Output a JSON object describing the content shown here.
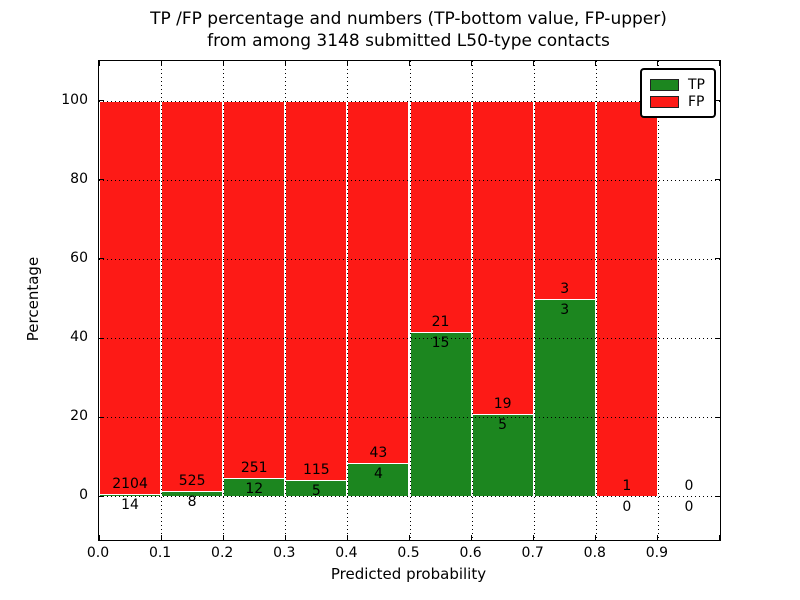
{
  "figure": {
    "title_line1": "TP /FP percentage and numbers (TP-bottom value, FP-upper)",
    "title_line2": "from among 3148 submitted L50-type contacts"
  },
  "chart_data": {
    "type": "bar",
    "stacked": true,
    "normalized": "each bin scaled to 100% of bin total",
    "title": "TP /FP percentage and numbers (TP-bottom value, FP-upper) from among 3148 submitted L50-type contacts",
    "total_contacts": 3148,
    "xlabel": "Predicted probability",
    "ylabel": "Percentage",
    "bin_edges": [
      0.0,
      0.1,
      0.2,
      0.3,
      0.4,
      0.5,
      0.6,
      0.7,
      0.8,
      0.9,
      1.0
    ],
    "xtick_labels": [
      "0.0",
      "0.1",
      "0.2",
      "0.3",
      "0.4",
      "0.5",
      "0.6",
      "0.7",
      "0.8",
      "0.9"
    ],
    "yticks": [
      0,
      20,
      40,
      60,
      80,
      100
    ],
    "xlim": [
      0.0,
      1.0
    ],
    "ylim": [
      -11,
      110
    ],
    "grid": "dotted black, drawn over bars",
    "series": [
      {
        "name": "TP",
        "color": "#1c861f",
        "counts": [
          14,
          8,
          12,
          5,
          4,
          15,
          5,
          3,
          0,
          0
        ]
      },
      {
        "name": "FP",
        "color": "#fd1a16",
        "counts": [
          2104,
          525,
          251,
          115,
          43,
          21,
          19,
          3,
          1,
          0
        ]
      }
    ],
    "tp_percent_by_bin": [
      0.66,
      1.5,
      4.56,
      4.17,
      8.51,
      41.67,
      20.83,
      50.0,
      0.0,
      null
    ],
    "legend": {
      "position": "upper right",
      "entries": [
        {
          "label": "TP",
          "color": "#1c861f"
        },
        {
          "label": "FP",
          "color": "#fd1a16"
        }
      ]
    }
  }
}
